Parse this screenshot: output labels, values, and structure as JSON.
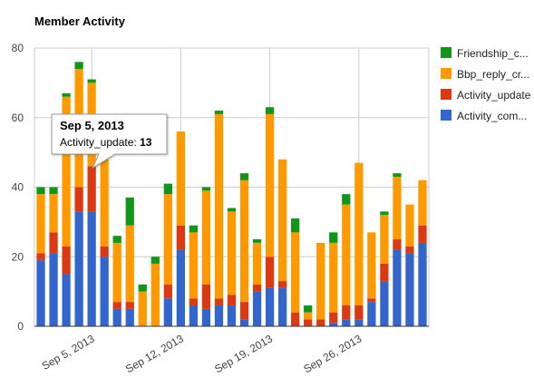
{
  "chart_data": {
    "type": "bar",
    "stacked": true,
    "title": "Member Activity",
    "xlabel": "",
    "ylabel": "",
    "ylim": [
      0,
      80
    ],
    "yticks": [
      0,
      20,
      40,
      60,
      80
    ],
    "grid": true,
    "legend_position": "right",
    "x_tick_labels": [
      {
        "label": "Sep 5, 2013",
        "at_bar": 4
      },
      {
        "label": "Sep 12, 2013",
        "at_bar": 11
      },
      {
        "label": "Sep 19, 2013",
        "at_bar": 18
      },
      {
        "label": "Sep 26, 2013",
        "at_bar": 25
      }
    ],
    "series": [
      {
        "name": "Activity_com...",
        "legend_label": "Activity_com...",
        "color": "#3366cc",
        "values": [
          19,
          21,
          15,
          33,
          33,
          20,
          5,
          5,
          0,
          0,
          8,
          22,
          6,
          5,
          6,
          6,
          2,
          10,
          11,
          11,
          0,
          0,
          0,
          1,
          2,
          2,
          7,
          13,
          22,
          21,
          24
        ]
      },
      {
        "name": "Activity_update",
        "legend_label": "Activity_update",
        "color": "#dc3912",
        "values": [
          2,
          6,
          8,
          7,
          13,
          3,
          2,
          2,
          0,
          0,
          4,
          7,
          2,
          7,
          2,
          3,
          5,
          2,
          9,
          2,
          4,
          2,
          2,
          3,
          4,
          4,
          1,
          5,
          3,
          2,
          5
        ]
      },
      {
        "name": "Bbp_reply_cr...",
        "legend_label": "Bbp_reply_cr...",
        "color": "#ff9900",
        "values": [
          17,
          11,
          43,
          34,
          24,
          25,
          17,
          22,
          10,
          18,
          26,
          27,
          19,
          27,
          53,
          24,
          35,
          12,
          41,
          35,
          23,
          2,
          22,
          20,
          29,
          41,
          19,
          14,
          18,
          12,
          13
        ]
      },
      {
        "name": "Friendship_c...",
        "legend_label": "Friendship_c...",
        "color": "#109618",
        "values": [
          2,
          2,
          1,
          2,
          1,
          0,
          2,
          8,
          2,
          2,
          3,
          0,
          2,
          1,
          1,
          1,
          2,
          1,
          2,
          0,
          4,
          2,
          0,
          3,
          3,
          0,
          0,
          1,
          1,
          0,
          0
        ]
      }
    ],
    "tooltip": {
      "date": "Sep 5, 2013",
      "series_label": "Activity_update:",
      "value": "13",
      "bar_index": 4
    }
  }
}
